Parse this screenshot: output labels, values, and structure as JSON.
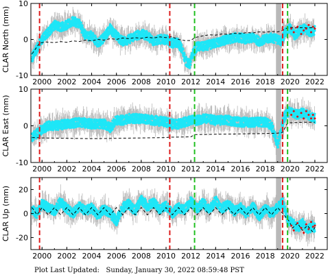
{
  "footer": {
    "label": "Plot Last Updated:",
    "timestamp": "Sunday, January 30, 2022 08:59:48 PST"
  },
  "colors": {
    "scatter_grey": "#b8b8b8",
    "series_cyan": "#1ee6f7",
    "model_black": "#000000",
    "event_red": "#dd1c1c",
    "event_green": "#1fbf1f",
    "recent_red_points": "#e01010"
  },
  "chart_data": [
    {
      "type": "scatter",
      "ylabel": "CLAR North (mm)",
      "xlim": [
        1999.1,
        2023.0
      ],
      "ylim": [
        -10,
        10
      ],
      "xticks": [
        2000,
        2002,
        2004,
        2006,
        2008,
        2010,
        2012,
        2014,
        2016,
        2018,
        2020,
        2022
      ],
      "yticks": [
        -10,
        0,
        10
      ],
      "vlines": [
        {
          "x": 1999.8,
          "color": "red"
        },
        {
          "x": 2010.3,
          "color": "red"
        },
        {
          "x": 2012.3,
          "color": "green"
        },
        {
          "x": 2019.4,
          "color": "red"
        },
        {
          "x": 2019.8,
          "color": "green"
        }
      ],
      "series": [
        {
          "style": "cyan-band",
          "x": [
            1999.2,
            1999.5,
            2000,
            2000.5,
            2001,
            2001.5,
            2002,
            2002.5,
            2003,
            2003.5,
            2004,
            2004.5,
            2005,
            2005.5,
            2006,
            2006.5,
            2007,
            2007.5,
            2008,
            2008.5,
            2009,
            2009.5,
            2010,
            2010.5,
            2011,
            2011.3,
            2011.6,
            2011.9,
            2012.2,
            2012.5,
            2013,
            2013.5,
            2014,
            2014.5,
            2015,
            2015.5,
            2016,
            2016.5,
            2017,
            2017.5,
            2018,
            2018.5,
            2019,
            2019.3,
            2019.6,
            2020,
            2020.4,
            2020.8,
            2021.2,
            2021.6,
            2022
          ],
          "y": [
            -5,
            -3,
            0,
            2,
            4,
            3.5,
            4,
            5,
            4.5,
            1,
            1,
            -1,
            0.5,
            3,
            1,
            -0.5,
            0,
            1,
            1.5,
            1,
            -0.5,
            0,
            0,
            -1,
            -1,
            -3,
            -6,
            -7,
            -3.5,
            -2,
            -2,
            -1.5,
            -1,
            -0.5,
            0,
            0.5,
            0.5,
            0,
            0.5,
            -0.5,
            0,
            0.5,
            0,
            -0.5,
            2,
            3,
            1,
            2.5,
            3,
            2,
            2.5
          ],
          "spread": 1.6
        },
        {
          "style": "model-dashed",
          "x": [
            1999.2,
            1999.8,
            2000.3,
            2001,
            2001.5,
            2002,
            2002.5,
            2003,
            2003.5,
            2004,
            2004.5,
            2005,
            2005.5,
            2006,
            2006.5,
            2007,
            2007.5,
            2008,
            2008.5,
            2009,
            2009.5,
            2010,
            2010.4,
            2011,
            2011.5,
            2012,
            2012.3,
            2013,
            2013.5,
            2014,
            2014.5,
            2015,
            2015.5,
            2016,
            2016.5,
            2017,
            2017.5,
            2018,
            2018.5,
            2019,
            2019.4,
            2019.9,
            2020.5,
            2021,
            2021.5,
            2022
          ],
          "y": [
            -4,
            -1,
            -0.7,
            -0.9,
            -0.6,
            -0.8,
            -0.4,
            -0.6,
            -0.2,
            -0.4,
            0,
            -0.2,
            0.2,
            0,
            0.4,
            0.2,
            0.5,
            0.3,
            0.6,
            0.4,
            0.7,
            0.5,
            0.8,
            0,
            -0.3,
            -0.3,
            0.5,
            1,
            1.3,
            1.2,
            1.5,
            1.4,
            1.7,
            1.6,
            1.9,
            1.8,
            2.1,
            2,
            2.2,
            2.1,
            2.5,
            3.4,
            3.2,
            3.3,
            3.2,
            3.3
          ]
        },
        {
          "style": "red-points",
          "x": [
            2020.1,
            2020.3,
            2020.6,
            2020.9,
            2021.1,
            2021.3,
            2021.5,
            2021.7,
            2021.85,
            2022
          ],
          "y": [
            3,
            2,
            3.5,
            1.5,
            2.5,
            3,
            4,
            2,
            3.5,
            3
          ]
        }
      ]
    },
    {
      "type": "scatter",
      "ylabel": "CLAR East (mm)",
      "xlim": [
        1999.1,
        2023.0
      ],
      "ylim": [
        -10,
        10
      ],
      "xticks": [
        2000,
        2002,
        2004,
        2006,
        2008,
        2010,
        2012,
        2014,
        2016,
        2018,
        2020,
        2022
      ],
      "yticks": [
        -10,
        0,
        10
      ],
      "vlines": [
        {
          "x": 1999.8,
          "color": "red"
        },
        {
          "x": 2010.3,
          "color": "red"
        },
        {
          "x": 2012.3,
          "color": "green"
        },
        {
          "x": 2019.4,
          "color": "red"
        },
        {
          "x": 2019.8,
          "color": "green"
        }
      ],
      "series": [
        {
          "style": "cyan-band",
          "x": [
            1999.2,
            1999.6,
            2000,
            2000.5,
            2001,
            2002,
            2003,
            2004,
            2005,
            2005.5,
            2006,
            2006.5,
            2007,
            2008,
            2009,
            2010,
            2010.5,
            2011,
            2012,
            2012.5,
            2013,
            2014,
            2015,
            2016,
            2017,
            2018,
            2018.5,
            2018.8,
            2019,
            2019.3,
            2019.6,
            2020,
            2020.5,
            2021,
            2021.5,
            2022
          ],
          "y": [
            -3,
            -2,
            -1,
            0,
            0,
            0.5,
            1,
            0.5,
            0.5,
            -0.5,
            1.5,
            1.5,
            2,
            2,
            1.5,
            1,
            0.5,
            0.5,
            1.5,
            1.5,
            2,
            1.5,
            1.5,
            1,
            1,
            1,
            0,
            -3,
            -5,
            -1,
            3,
            4,
            3,
            3.5,
            3,
            2
          ],
          "spread": 1.6
        },
        {
          "style": "model-dashed",
          "x": [
            1999.2,
            2000,
            2002,
            2004,
            2006,
            2008,
            2010,
            2010.3,
            2012,
            2012.3,
            2014,
            2016,
            2018,
            2019,
            2019.4,
            2019.8,
            2020.5,
            2021,
            2022
          ],
          "y": [
            -3.2,
            -3.3,
            -3.4,
            -3.5,
            -3.4,
            -3.3,
            -3.2,
            -3.1,
            -3,
            -2.4,
            -2.3,
            -2.2,
            -2.1,
            -2,
            -1.8,
            0.8,
            0.9,
            1,
            1
          ]
        },
        {
          "style": "red-points",
          "x": [
            2020.1,
            2020.3,
            2020.6,
            2020.9,
            2021.1,
            2021.3,
            2021.5,
            2021.7,
            2021.85,
            2022
          ],
          "y": [
            3,
            4,
            2.5,
            3.5,
            2,
            4,
            3,
            2,
            3,
            2
          ]
        }
      ]
    },
    {
      "type": "scatter",
      "ylabel": "CLAR Up (mm)",
      "xlim": [
        1999.1,
        2023.0
      ],
      "ylim": [
        -30,
        30
      ],
      "xticks": [
        2000,
        2002,
        2004,
        2006,
        2008,
        2010,
        2012,
        2014,
        2016,
        2018,
        2020,
        2022
      ],
      "yticks": [
        -20,
        0,
        20
      ],
      "vlines": [
        {
          "x": 1999.8,
          "color": "red"
        },
        {
          "x": 2010.3,
          "color": "red"
        },
        {
          "x": 2012.3,
          "color": "green"
        },
        {
          "x": 2019.4,
          "color": "red"
        },
        {
          "x": 2019.8,
          "color": "green"
        }
      ],
      "series": [
        {
          "style": "cyan-band",
          "x": [
            1999.2,
            1999.6,
            2000,
            2000.5,
            2001,
            2001.5,
            2002,
            2002.5,
            2003,
            2003.5,
            2004,
            2004.5,
            2005,
            2005.5,
            2006,
            2006.5,
            2007,
            2007.5,
            2008,
            2008.5,
            2009,
            2009.5,
            2010,
            2010.5,
            2011,
            2011.5,
            2012,
            2012.5,
            2013,
            2013.5,
            2014,
            2014.5,
            2015,
            2015.5,
            2016,
            2016.5,
            2017,
            2017.5,
            2018,
            2018.5,
            2019,
            2019.4,
            2019.8,
            2020.2,
            2020.6,
            2021,
            2021.4,
            2021.8,
            2022
          ],
          "y": [
            3,
            0,
            8,
            5,
            2,
            10,
            4,
            0,
            6,
            2,
            5,
            -2,
            4,
            0,
            -6,
            5,
            8,
            2,
            12,
            6,
            9,
            3,
            7,
            0,
            5,
            3,
            10,
            4,
            9,
            3,
            11,
            4,
            8,
            2,
            5,
            0,
            6,
            -2,
            4,
            0,
            5,
            10,
            -5,
            -8,
            -12,
            -8,
            -14,
            -10,
            -12
          ],
          "spread": 5
        },
        {
          "style": "model-dashed",
          "x": [
            1999.2,
            1999.6,
            2000,
            2000.5,
            2001,
            2001.5,
            2002,
            2002.5,
            2003,
            2003.5,
            2004,
            2004.5,
            2005,
            2005.5,
            2006,
            2006.5,
            2007,
            2007.5,
            2008,
            2008.5,
            2009,
            2009.5,
            2010,
            2010.5,
            2011,
            2011.5,
            2012,
            2012.5,
            2013,
            2013.5,
            2014,
            2014.5,
            2015,
            2015.5,
            2016,
            2016.5,
            2017,
            2017.5,
            2018,
            2018.5,
            2019,
            2019.5,
            2019.9,
            2020.2,
            2020.6,
            2021,
            2021.4,
            2021.8,
            2022.1
          ],
          "y": [
            5,
            -1,
            5,
            -1,
            5,
            -1,
            5,
            -1,
            5,
            -1,
            5,
            -1,
            5,
            -1,
            5,
            -1,
            5,
            -1,
            5,
            -1,
            5,
            -1,
            5,
            -1,
            5,
            -1,
            5,
            -1,
            5,
            -1,
            5,
            -1,
            5,
            -1,
            5,
            -1,
            5,
            -1,
            5,
            -1,
            5,
            -1,
            -6,
            -12,
            -8,
            -14,
            -10,
            -15,
            -10
          ]
        },
        {
          "style": "red-points",
          "x": [
            2020.1,
            2020.3,
            2020.6,
            2020.9,
            2021.1,
            2021.3,
            2021.5,
            2021.7,
            2021.85,
            2022
          ],
          "y": [
            -10,
            -14,
            -8,
            -12,
            -16,
            -9,
            -13,
            -7,
            -11,
            -10
          ]
        }
      ]
    }
  ]
}
